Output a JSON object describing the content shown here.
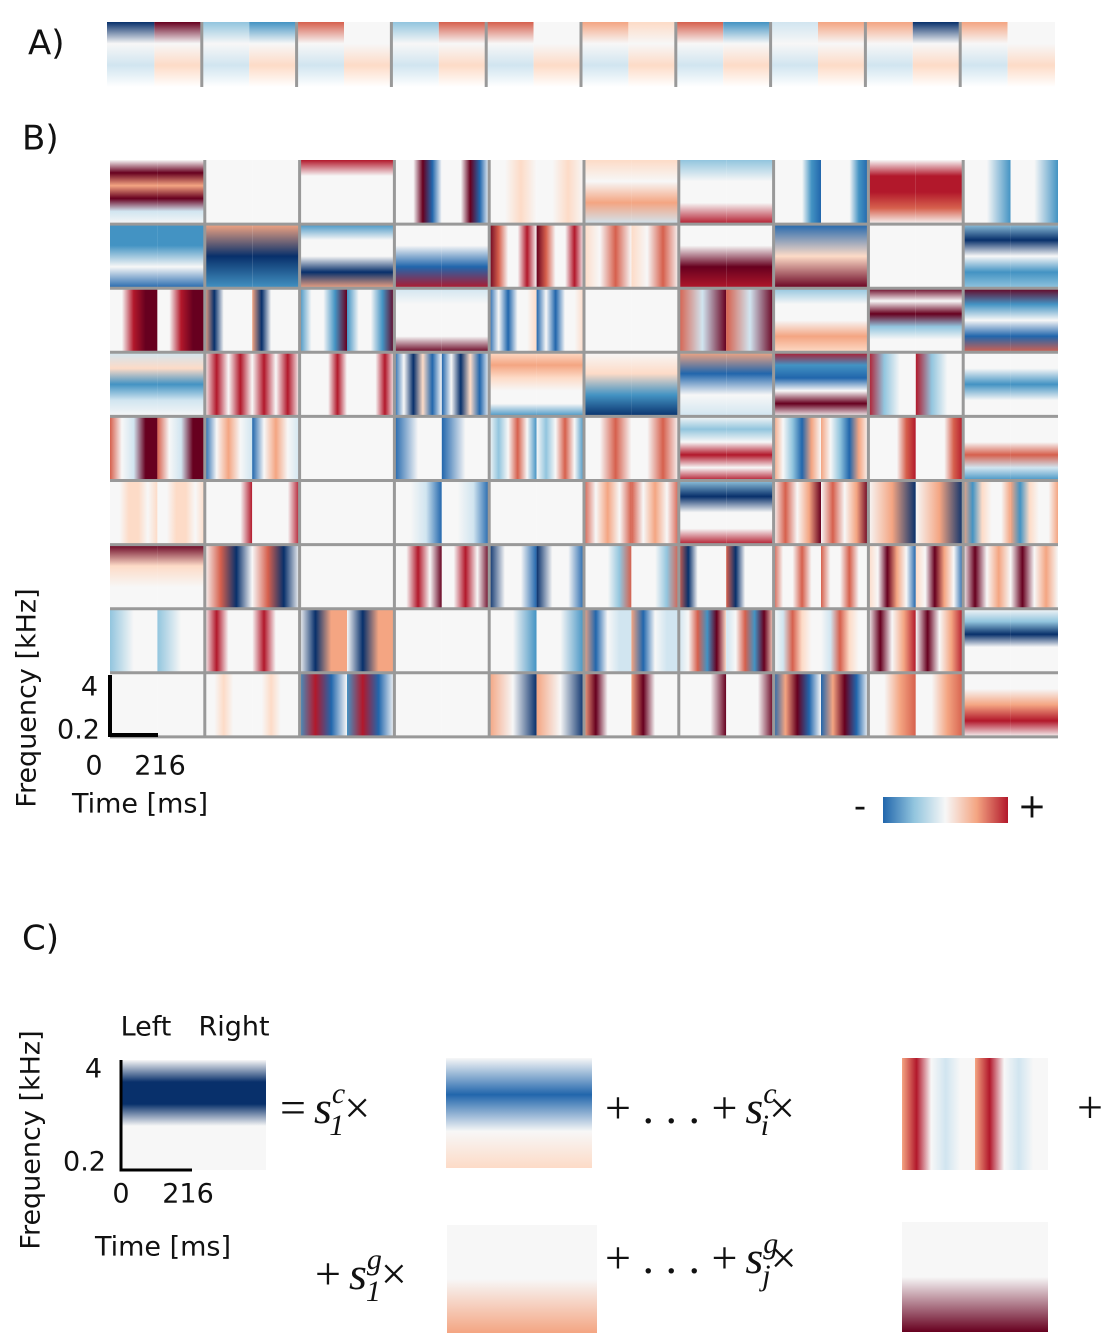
{
  "panels": {
    "a": "A)",
    "b": "B)",
    "c": "C)"
  },
  "panel_b": {
    "y_label": "Frequency [kHz]",
    "y_ticks": [
      "4",
      "0.2"
    ],
    "x_ticks": [
      "0",
      "216"
    ],
    "x_label": "Time [ms]",
    "colorbar": {
      "low": "-",
      "high": "+"
    }
  },
  "panel_c": {
    "y_label": "Frequency [kHz]",
    "channels": [
      "Left",
      "Right"
    ],
    "y_ticks": [
      "4",
      "0.2"
    ],
    "x_ticks": [
      "0",
      "216"
    ],
    "x_label": "Time [ms]",
    "equation": {
      "row1": [
        {
          "prefix": "=",
          "base": "s",
          "sub": "1",
          "sup": "c",
          "suffix": "×"
        },
        {
          "prefix": "+ . . . +",
          "base": "s",
          "sub": "i",
          "sup": "c",
          "suffix": "×"
        }
      ],
      "row1_end": "+",
      "row2": [
        {
          "prefix": "+",
          "base": "s",
          "sub": "1",
          "sup": "g",
          "suffix": "×"
        },
        {
          "prefix": "+ . . . +",
          "base": "s",
          "sub": "j",
          "sup": "g",
          "suffix": "×"
        }
      ]
    }
  }
}
